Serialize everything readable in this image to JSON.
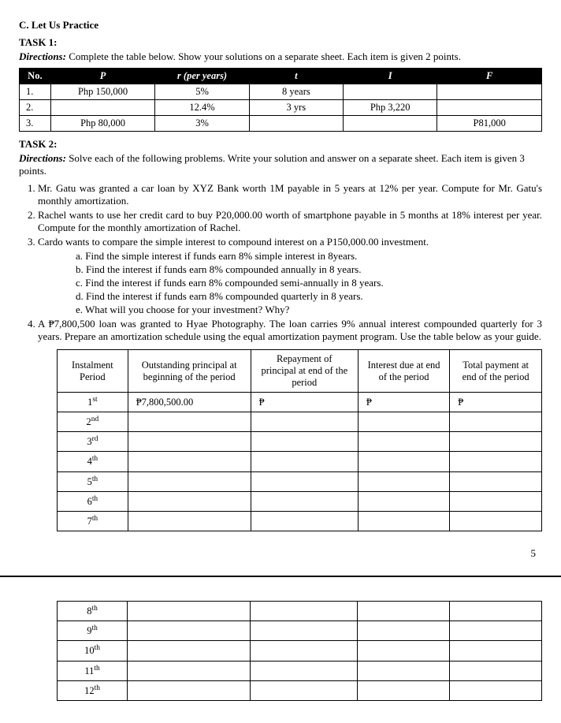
{
  "section_heading": "C.  Let Us Practice",
  "task1": {
    "label": "TASK 1:",
    "directions_lead": "Directions:",
    "directions_text": " Complete the table below. Show your solutions on a separate sheet. Each item is given 2 points.",
    "headers": [
      "No.",
      "P",
      "r (per years)",
      "t",
      "I",
      "F"
    ],
    "rows": [
      [
        "1.",
        "Php 150,000",
        "5%",
        "8 years",
        "",
        ""
      ],
      [
        "2.",
        "",
        "12.4%",
        "3 yrs",
        "Php 3,220",
        ""
      ],
      [
        "3.",
        "Php 80,000",
        "3%",
        "",
        "",
        "P81,000"
      ]
    ]
  },
  "task2": {
    "label": "TASK 2:",
    "directions_lead": "Directions:",
    "directions_text": " Solve each of the following problems. Write your solution and answer on a separate sheet. Each item is given 3 points.",
    "items": [
      "Mr. Gatu was granted a car loan by XYZ Bank worth 1M payable in 5 years at 12% per year. Compute for Mr. Gatu's monthly amortization.",
      "Rachel wants to use her credit card to buy P20,000.00 worth of smartphone payable in 5 months at 18% interest per year. Compute for the monthly amortization of Rachel.",
      "Cardo wants to compare the simple interest to compound interest on a P150,000.00 investment.",
      "A ₱7,800,500 loan was granted to Hyae Photography. The loan carries 9% annual interest compounded quarterly for 3 years. Prepare an amortization schedule using the equal amortization payment program. Use the table below as your guide."
    ],
    "sub3": [
      "a. Find the simple interest if funds earn 8% simple interest in 8years.",
      "b. Find the interest if funds earn 8% compounded annually in 8 years.",
      "c. Find the interest if funds earn 8% compounded semi-annually in 8 years.",
      "d. Find the interest if funds earn 8% compounded quarterly in 8 years.",
      "e. What will you choose for your investment? Why?"
    ],
    "amort_headers": [
      "Instalment Period",
      "Outstanding principal at beginning of the period",
      "Repayment of principal at end of the period",
      "Interest due at end of the period",
      "Total payment at end of the period"
    ],
    "amort_rows_top": [
      "1",
      "2",
      "3",
      "4",
      "5",
      "6",
      "7"
    ],
    "amort_ord_top": [
      "st",
      "nd",
      "rd",
      "th",
      "th",
      "th",
      "th"
    ],
    "amort_first_row_vals": [
      "₱7,800,500.00",
      "₱",
      "₱",
      "₱"
    ],
    "amort_rows_bottom": [
      "8",
      "9",
      "10",
      "11",
      "12"
    ],
    "amort_ord_bottom": [
      "th",
      "th",
      "th",
      "th",
      "th"
    ]
  },
  "page_number": "5"
}
